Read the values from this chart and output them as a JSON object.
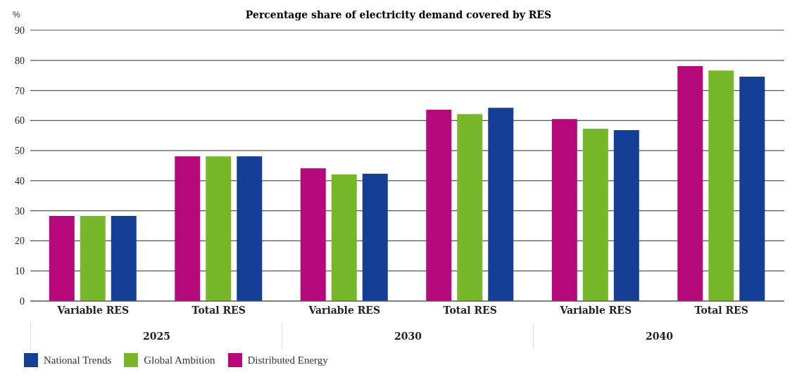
{
  "chart_data": {
    "type": "bar",
    "title": "Percentage share of electricity demand covered by RES",
    "ylabel": "%",
    "categories": [
      "Variable RES",
      "Total RES",
      "Variable RES",
      "Total RES",
      "Variable RES",
      "Total RES"
    ],
    "annotations": [
      "2025",
      "2030",
      "2040"
    ],
    "series": [
      {
        "name": "Distributed Energy",
        "color": "#b5097b",
        "values": [
          28.3,
          48.1,
          44.1,
          63.6,
          60.5,
          78.1
        ]
      },
      {
        "name": "Global Ambition",
        "color": "#78b72a",
        "values": [
          28.3,
          48.1,
          42.1,
          62.1,
          57.3,
          76.6
        ]
      },
      {
        "name": "National Trends",
        "color": "#143f94",
        "values": [
          28.3,
          48.1,
          42.3,
          64.2,
          56.8,
          74.6
        ]
      }
    ],
    "ylim": [
      0,
      90
    ],
    "yticks": [
      0,
      10,
      20,
      30,
      40,
      50,
      60,
      70,
      80,
      90
    ],
    "grid": "y",
    "legend": "bottom left"
  }
}
